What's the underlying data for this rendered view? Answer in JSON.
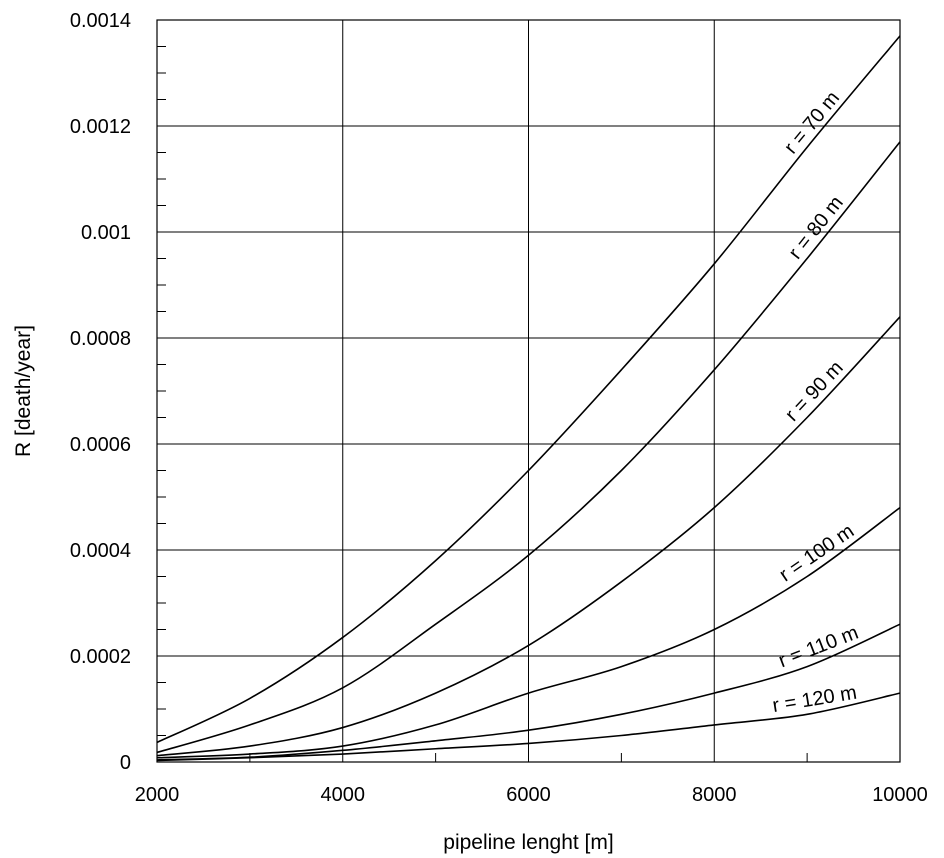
{
  "chart_data": {
    "type": "line",
    "title": "",
    "xlabel": "pipeline lenght [m]",
    "ylabel": "R [death/year]",
    "xlim": [
      2000,
      10000
    ],
    "ylim": [
      0,
      0.0014
    ],
    "x_ticks": [
      2000,
      4000,
      6000,
      8000,
      10000
    ],
    "x_tick_labels": [
      "2000",
      "4000",
      "6000",
      "8000",
      "10000"
    ],
    "y_ticks": [
      0,
      0.0002,
      0.0004,
      0.0006,
      0.0008,
      0.001,
      0.0012,
      0.0014
    ],
    "y_tick_labels": [
      "0",
      "0.0002",
      "0.0004",
      "0.0006",
      "0.0008",
      "0.001",
      "0.0012",
      "0.0014"
    ],
    "grid": true,
    "legend": "none",
    "x": [
      2000,
      3000,
      4000,
      5000,
      6000,
      7000,
      8000,
      9000,
      10000
    ],
    "series": [
      {
        "name": "r = 70 m",
        "values": [
          3.7e-05,
          0.00012,
          0.000235,
          0.00038,
          0.00055,
          0.00074,
          0.00094,
          0.00116,
          0.00137
        ]
      },
      {
        "name": "r = 80 m",
        "values": [
          1.8e-05,
          7e-05,
          0.00014,
          0.00026,
          0.00039,
          0.00055,
          0.00074,
          0.00095,
          0.00117
        ]
      },
      {
        "name": "r = 90 m",
        "values": [
          1.2e-05,
          3e-05,
          6.5e-05,
          0.00013,
          0.00022,
          0.00034,
          0.00048,
          0.00065,
          0.00084
        ]
      },
      {
        "name": "r = 100 m",
        "values": [
          8e-06,
          1.5e-05,
          3e-05,
          7e-05,
          0.00013,
          0.00018,
          0.00025,
          0.00035,
          0.00048
        ]
      },
      {
        "name": "r = 110 m",
        "values": [
          4e-06,
          9e-06,
          2.2e-05,
          4e-05,
          6e-05,
          9e-05,
          0.00013,
          0.00018,
          0.00026
        ]
      },
      {
        "name": "r = 120 m",
        "values": [
          3e-06,
          8e-06,
          1.5e-05,
          2.5e-05,
          3.5e-05,
          5e-05,
          7e-05,
          9e-05,
          0.00013
        ]
      }
    ]
  }
}
